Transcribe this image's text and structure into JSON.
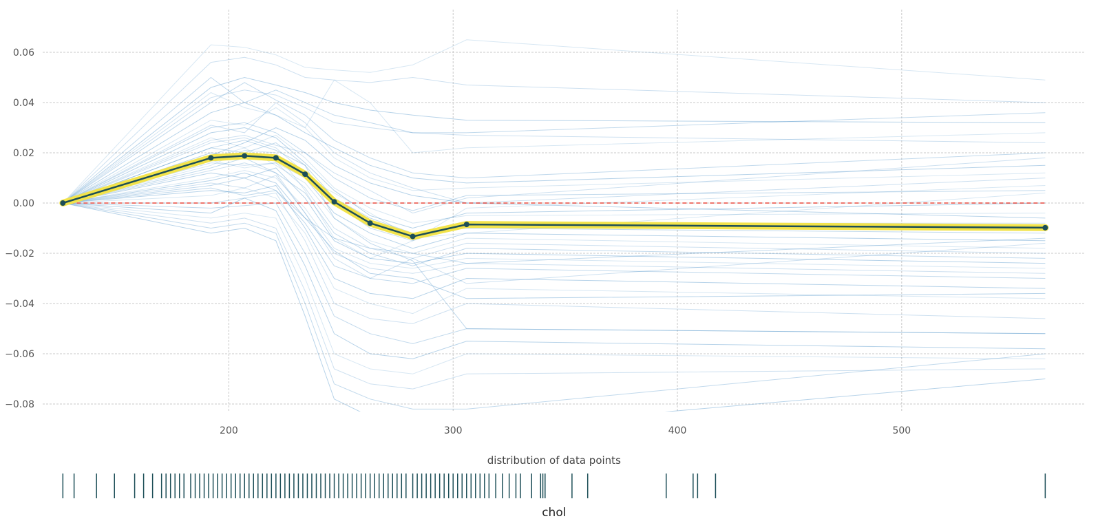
{
  "chart_data": {
    "type": "line",
    "title": "",
    "xlabel": "chol",
    "ylabel": "",
    "distribution_label": "distribution of data points",
    "xlim": [
      117,
      582
    ],
    "ylim": [
      -0.083,
      0.077
    ],
    "xticks": [
      200,
      300,
      400,
      500
    ],
    "yticks": [
      0.06,
      0.04,
      0.02,
      0.0,
      -0.02,
      -0.04,
      -0.06,
      -0.08
    ],
    "ytick_labels": [
      "0.06",
      "0.04",
      "0.02",
      "0.00",
      "−0.02",
      "−0.04",
      "−0.06",
      "−0.08"
    ],
    "grid": true,
    "x_grid_points": [
      126,
      192,
      207,
      221,
      234,
      247,
      263,
      282,
      306,
      564
    ],
    "average_line": [
      0.0,
      0.018,
      0.0188,
      0.018,
      0.0115,
      0.0005,
      -0.008,
      -0.0133,
      -0.0085,
      -0.0098
    ],
    "zero_reference": 0,
    "individual_lines": [
      [
        0,
        0.063,
        0.062,
        0.059,
        0.054,
        0.053,
        0.052,
        0.055,
        0.065,
        0.049
      ],
      [
        0,
        0.056,
        0.058,
        0.055,
        0.05,
        0.049,
        0.048,
        0.05,
        0.047,
        0.04
      ],
      [
        0,
        0.05,
        0.04,
        0.045,
        0.04,
        0.035,
        0.032,
        0.028,
        0.028,
        0.036
      ],
      [
        0,
        0.046,
        0.05,
        0.047,
        0.044,
        0.04,
        0.037,
        0.035,
        0.033,
        0.032
      ],
      [
        0,
        0.044,
        0.038,
        0.035,
        0.03,
        0.049,
        0.04,
        0.02,
        0.022,
        0.028
      ],
      [
        0,
        0.042,
        0.045,
        0.043,
        0.038,
        0.032,
        0.03,
        0.028,
        0.027,
        0.024
      ],
      [
        0,
        0.04,
        0.048,
        0.041,
        0.035,
        0.025,
        0.018,
        0.012,
        0.01,
        0.02
      ],
      [
        0,
        0.036,
        0.04,
        0.035,
        0.028,
        0.022,
        0.015,
        0.01,
        0.008,
        0.015
      ],
      [
        0,
        0.033,
        0.031,
        0.038,
        0.03,
        0.018,
        0.01,
        0.005,
        0.006,
        0.012
      ],
      [
        0,
        0.031,
        0.028,
        0.04,
        0.032,
        0.02,
        0.012,
        0.006,
        0.0,
        0.01
      ],
      [
        0,
        0.03,
        0.032,
        0.028,
        0.02,
        0.01,
        0.002,
        -0.003,
        0.003,
        0.005
      ],
      [
        0,
        0.028,
        0.03,
        0.026,
        0.016,
        0.005,
        -0.005,
        -0.01,
        -0.004,
        0.0
      ],
      [
        0,
        0.026,
        0.022,
        0.027,
        0.018,
        0.006,
        -0.002,
        -0.008,
        -0.005,
        -0.004
      ],
      [
        0,
        0.024,
        0.026,
        0.022,
        0.012,
        0.0,
        -0.01,
        -0.015,
        -0.008,
        -0.008
      ],
      [
        0,
        0.022,
        0.02,
        0.024,
        0.015,
        0.002,
        -0.006,
        -0.012,
        -0.01,
        -0.012
      ],
      [
        0,
        0.02,
        0.018,
        0.018,
        0.01,
        -0.004,
        -0.012,
        -0.018,
        -0.012,
        -0.015
      ],
      [
        0,
        0.018,
        0.022,
        0.015,
        0.008,
        -0.006,
        -0.015,
        -0.02,
        -0.014,
        -0.018
      ],
      [
        0,
        0.016,
        0.015,
        0.016,
        0.006,
        -0.01,
        -0.018,
        -0.022,
        -0.016,
        -0.02
      ],
      [
        0,
        0.014,
        0.018,
        0.012,
        0.004,
        -0.012,
        -0.02,
        -0.025,
        -0.018,
        -0.022
      ],
      [
        0,
        0.012,
        0.01,
        0.014,
        0.002,
        -0.015,
        -0.022,
        -0.024,
        -0.02,
        -0.024
      ],
      [
        0,
        0.01,
        0.013,
        0.01,
        -0.002,
        -0.018,
        -0.024,
        -0.026,
        -0.022,
        -0.026
      ],
      [
        0,
        0.008,
        0.006,
        0.011,
        -0.004,
        -0.02,
        -0.026,
        -0.028,
        -0.024,
        -0.028
      ],
      [
        0,
        0.007,
        0.01,
        0.005,
        -0.008,
        -0.025,
        -0.03,
        -0.032,
        -0.026,
        -0.03
      ],
      [
        0,
        0.005,
        0.004,
        0.007,
        -0.01,
        -0.03,
        -0.036,
        -0.038,
        -0.03,
        -0.034
      ],
      [
        0,
        0.003,
        0.006,
        0.002,
        -0.012,
        -0.034,
        -0.04,
        -0.044,
        -0.034,
        -0.038
      ],
      [
        0,
        0.0,
        0.002,
        0.004,
        -0.015,
        -0.04,
        -0.046,
        -0.048,
        -0.04,
        -0.046
      ],
      [
        0,
        -0.002,
        -0.001,
        0.0,
        -0.02,
        -0.045,
        -0.052,
        -0.056,
        -0.05,
        -0.052
      ],
      [
        0,
        -0.004,
        0.002,
        -0.003,
        -0.025,
        -0.052,
        -0.06,
        -0.062,
        -0.055,
        -0.058
      ],
      [
        0,
        -0.006,
        -0.004,
        -0.006,
        -0.03,
        -0.06,
        -0.066,
        -0.068,
        -0.06,
        -0.062
      ],
      [
        0,
        -0.008,
        -0.006,
        -0.01,
        -0.035,
        -0.066,
        -0.072,
        -0.074,
        -0.068,
        -0.066
      ],
      [
        0,
        -0.01,
        -0.008,
        -0.012,
        -0.04,
        -0.072,
        -0.078,
        -0.082,
        -0.082,
        -0.06
      ],
      [
        0,
        -0.012,
        -0.01,
        -0.015,
        -0.045,
        -0.078,
        -0.085,
        -0.088,
        -0.09,
        -0.07
      ],
      [
        0,
        0.015,
        0.021,
        0.02,
        0.005,
        -0.014,
        -0.022,
        -0.015,
        -0.002,
        0.007
      ],
      [
        0,
        0.013,
        0.016,
        0.012,
        -0.004,
        -0.022,
        -0.03,
        -0.022,
        -0.032,
        -0.016
      ],
      [
        0,
        0.022,
        0.025,
        0.021,
        0.015,
        -0.006,
        -0.016,
        -0.023,
        -0.05,
        -0.052
      ],
      [
        0,
        0.009,
        0.012,
        0.008,
        -0.006,
        -0.019,
        -0.028,
        -0.03,
        -0.038,
        -0.036
      ],
      [
        0,
        0.017,
        0.014,
        0.016,
        0.01,
        0.004,
        -0.004,
        -0.014,
        -0.012,
        0.004
      ],
      [
        0,
        0.025,
        0.027,
        0.023,
        0.02,
        0.012,
        0.005,
        -0.004,
        0.002,
        0.018
      ],
      [
        0,
        0.006,
        0.003,
        0.005,
        -0.006,
        -0.014,
        -0.018,
        -0.02,
        -0.024,
        -0.014
      ],
      [
        0,
        0.019,
        0.024,
        0.03,
        0.025,
        0.015,
        0.008,
        0.003,
        0.0,
        -0.006
      ]
    ],
    "rug_positions": [
      126,
      131,
      141,
      149,
      158,
      162,
      166,
      170,
      172,
      174,
      176,
      178,
      180,
      183,
      185,
      187,
      189,
      191,
      193,
      195,
      197,
      199,
      201,
      203,
      205,
      207,
      209,
      211,
      213,
      215,
      217,
      219,
      221,
      223,
      225,
      227,
      229,
      231,
      233,
      235,
      237,
      239,
      241,
      243,
      245,
      247,
      249,
      251,
      253,
      255,
      257,
      259,
      261,
      263,
      265,
      267,
      269,
      271,
      273,
      275,
      277,
      279,
      282,
      284,
      286,
      288,
      290,
      292,
      294,
      296,
      298,
      300,
      302,
      304,
      306,
      308,
      310,
      312,
      314,
      316,
      319,
      322,
      325,
      328,
      330,
      335,
      339,
      340,
      341,
      353,
      360,
      395,
      407,
      409,
      417,
      564
    ]
  }
}
